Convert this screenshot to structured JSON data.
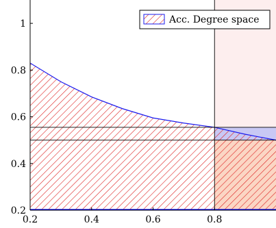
{
  "chart_data": {
    "type": "area",
    "xlim": [
      0.2,
      1.0
    ],
    "ylim": [
      0.2,
      1.1
    ],
    "xticks": [
      0.2,
      0.4,
      0.6,
      0.8
    ],
    "xtick_labels": [
      "0.2",
      "0.4",
      "0.6",
      "0.8"
    ],
    "yticks": [
      0.2,
      0.4,
      0.6,
      0.8,
      1.0
    ],
    "ytick_labels": [
      "0.2",
      "0.4",
      "0.6",
      "0.8",
      "1"
    ],
    "grid": false,
    "legend": {
      "position": "top-right",
      "entries": [
        "Acc. Degree space"
      ]
    },
    "series": [
      {
        "name": "Acc. Degree space",
        "kind": "hatched-area",
        "baseline": 0.2,
        "x": [
          0.2,
          0.3,
          0.4,
          0.5,
          0.6,
          0.7,
          0.8,
          0.9,
          1.0
        ],
        "y": [
          0.83,
          0.75,
          0.685,
          0.635,
          0.595,
          0.573,
          0.555,
          0.525,
          0.5
        ]
      }
    ],
    "vertical_lines": [
      0.8
    ],
    "horizontal_lines": [
      0.555,
      0.5
    ],
    "regions": [
      {
        "kind": "light-red-fill",
        "x": [
          0.8,
          1.0
        ],
        "y": [
          0.2,
          1.1
        ]
      },
      {
        "kind": "blue-fill",
        "x": [
          0.8,
          1.0
        ],
        "y": [
          0.5,
          0.555
        ]
      },
      {
        "kind": "orange-fill",
        "x": [
          0.8,
          1.0
        ],
        "y": [
          0.2,
          0.5
        ]
      }
    ],
    "colors": {
      "hatch": "#dd2222",
      "curve": "#1a1aee",
      "light_red": "#fdeeee",
      "blue_fill": "#c8c8f4",
      "orange_fill": "#fbd6c4"
    }
  }
}
